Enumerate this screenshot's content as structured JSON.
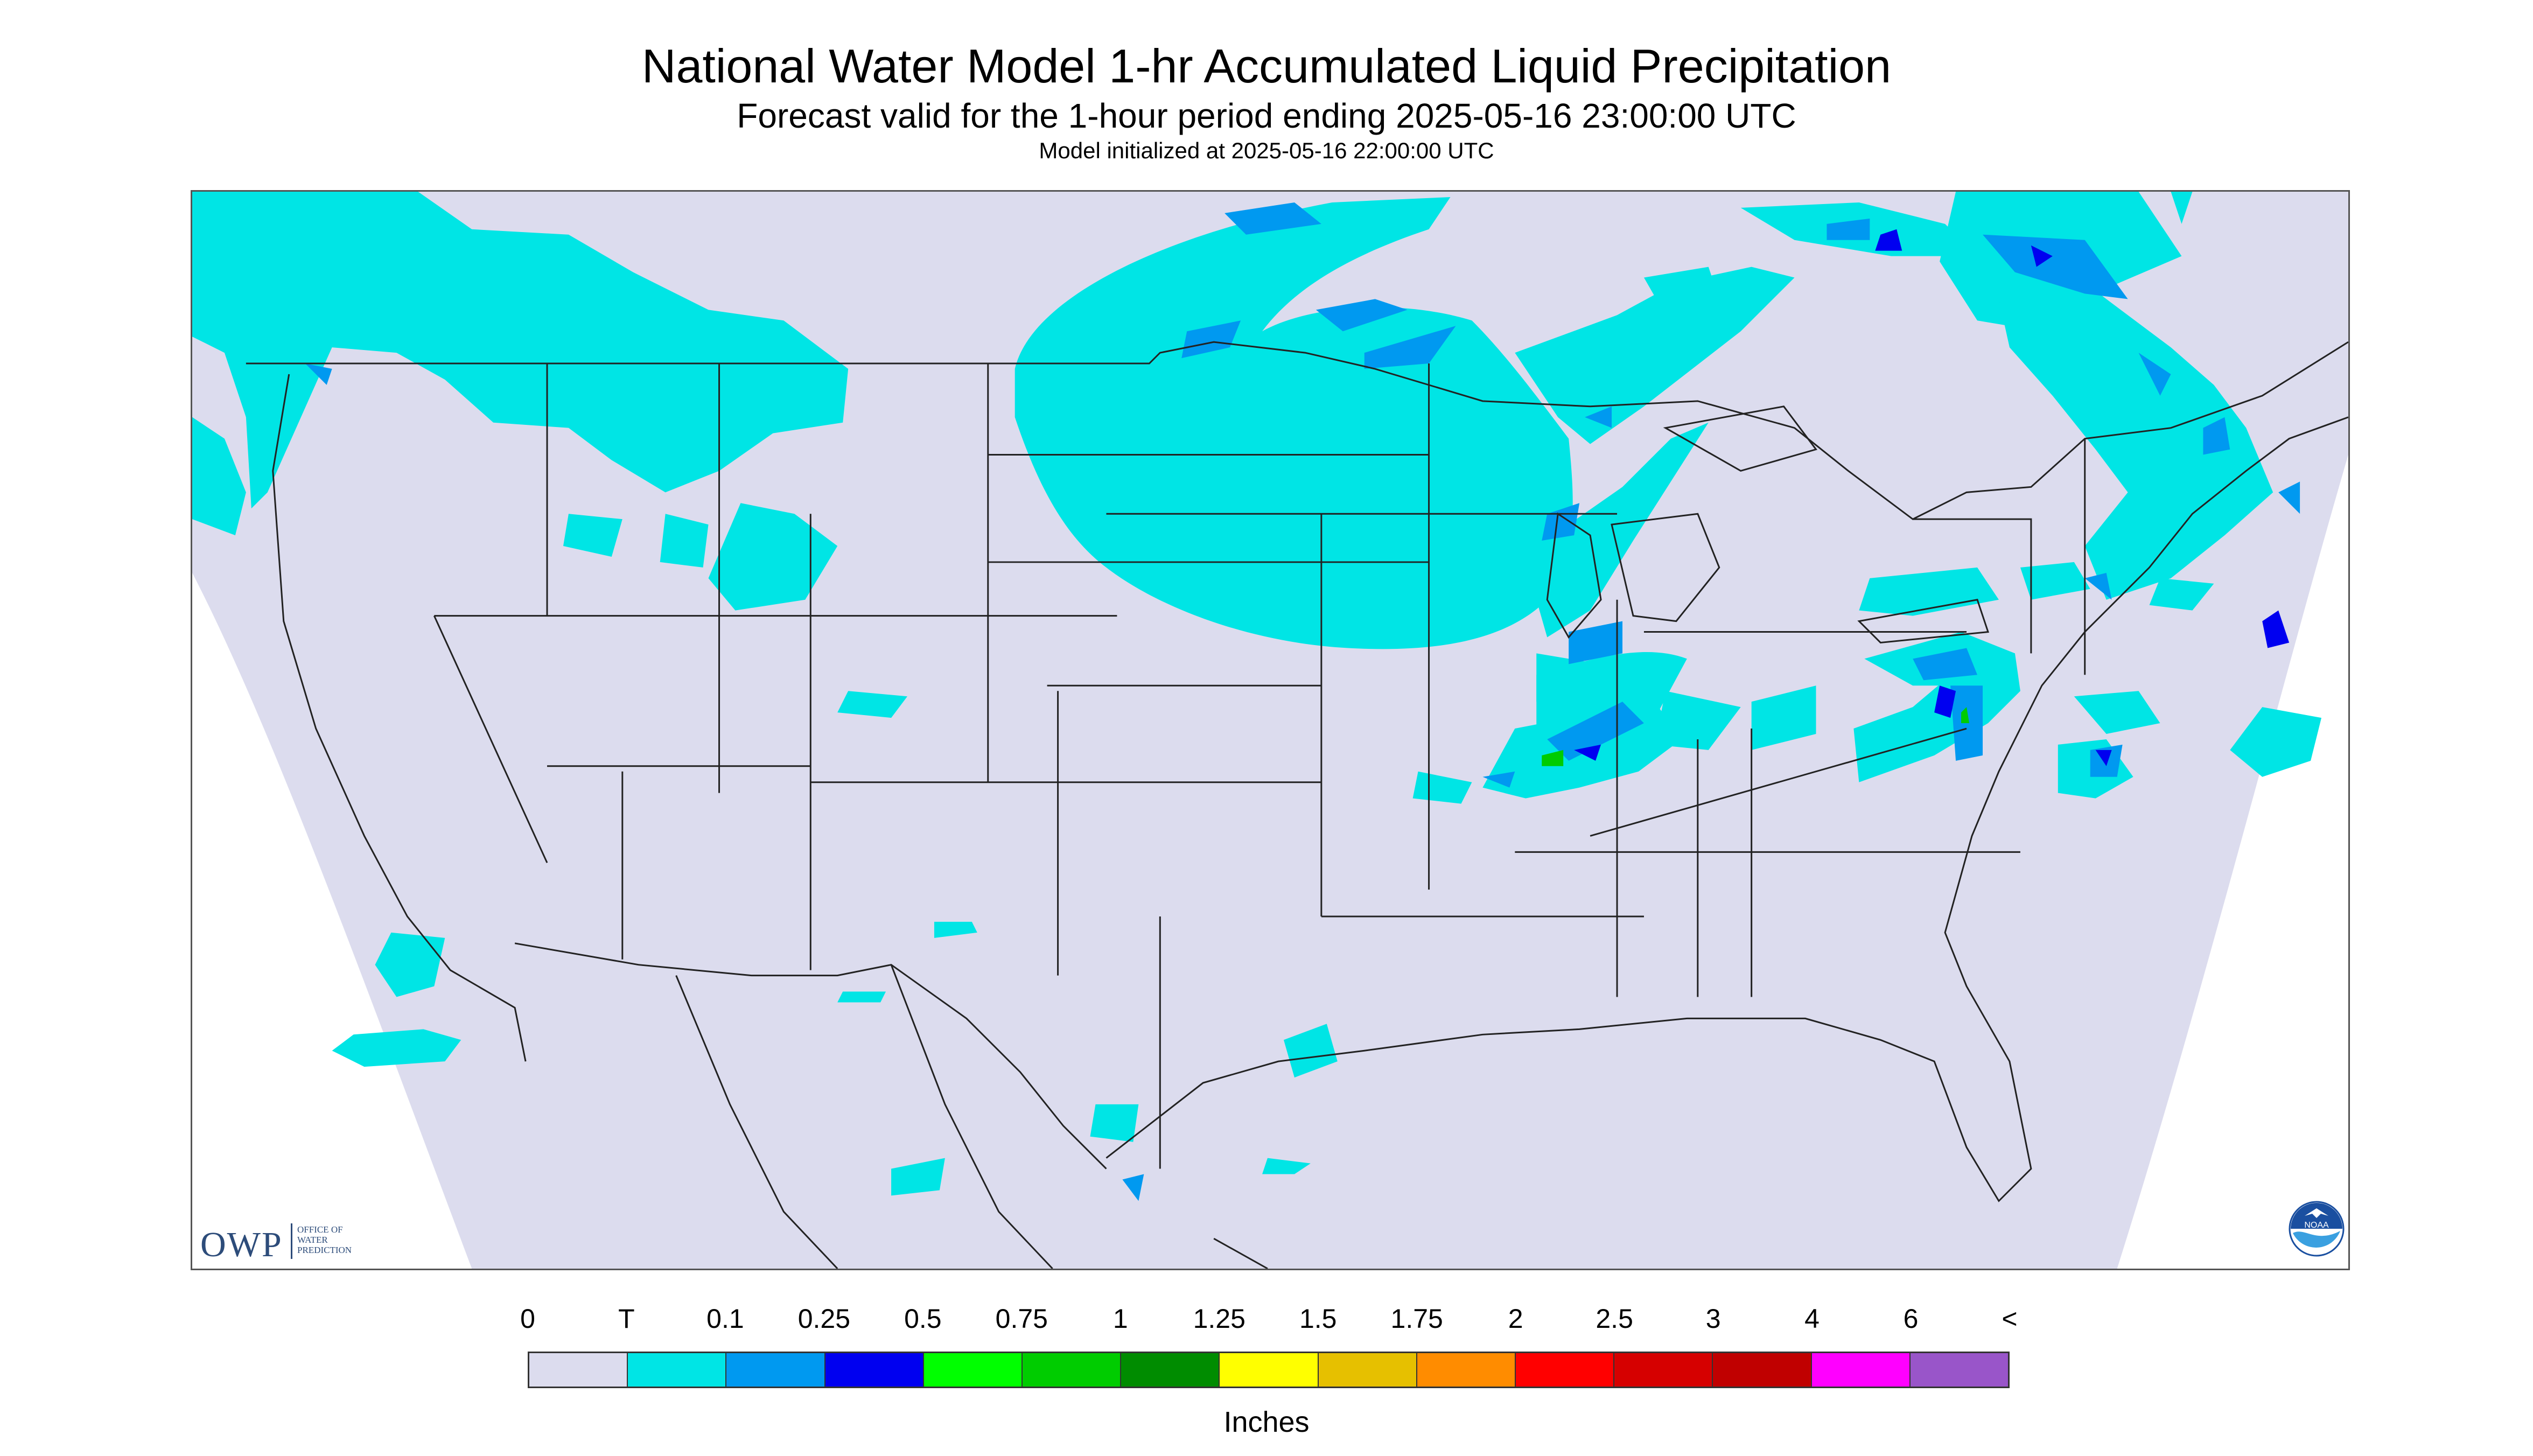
{
  "title": "National Water Model 1-hr Accumulated Liquid Precipitation",
  "subtitle": "Forecast valid for the 1-hour period ending 2025-05-16 23:00:00 UTC",
  "init_text": "Model initialized at 2025-05-16 22:00:00 UTC",
  "logo_owp": {
    "abbr": "OWP",
    "name": "OFFICE OF\nWATER\nPREDICTION"
  },
  "logo_noaa": "NOAA",
  "legend": {
    "labels": [
      "0",
      "T",
      "0.1",
      "0.25",
      "0.5",
      "0.75",
      "1",
      "1.25",
      "1.5",
      "1.75",
      "2",
      "2.5",
      "3",
      "4",
      "6",
      "<"
    ],
    "colors": [
      "#dcdcee",
      "#00e5e5",
      "#0099f0",
      "#0000f0",
      "#00ff00",
      "#00cc00",
      "#008c00",
      "#ffff00",
      "#e6c000",
      "#ff8c00",
      "#ff0000",
      "#d60000",
      "#c00000",
      "#ff00ff",
      "#9955c9"
    ],
    "units": "Inches"
  },
  "colors": {
    "domain": "#dcdcee",
    "trace": "#00e5e5",
    "light": "#0099f0",
    "moderate": "#0000f0",
    "heavy": "#00cc00",
    "border": "#222222"
  }
}
